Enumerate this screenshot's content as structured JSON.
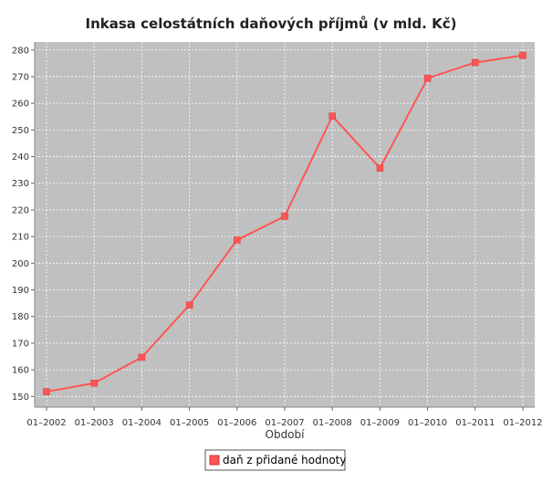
{
  "chart_data": {
    "type": "line",
    "title": "Inkasa celostátních daňových příjmů (v mld. Kč)",
    "xlabel": "Období",
    "ylabel": "",
    "categories": [
      "01–2002",
      "01–2003",
      "01–2004",
      "01–2005",
      "01–2006",
      "01–2007",
      "01–2008",
      "01–2009",
      "01–2010",
      "01–2011",
      "01–2012"
    ],
    "yticks": [
      150,
      160,
      170,
      180,
      190,
      200,
      210,
      220,
      230,
      240,
      250,
      260,
      270,
      280
    ],
    "ylim": [
      146,
      283
    ],
    "grid": true,
    "legend_position": "bottom",
    "series": [
      {
        "name": "daň z přidané hodnoty",
        "color": "#ff5555",
        "values": [
          151.8,
          155.0,
          164.7,
          184.3,
          208.7,
          217.6,
          255.2,
          235.7,
          269.4,
          275.3,
          278.0
        ]
      }
    ]
  },
  "colors": {
    "plot_bg": "#c0c0c0",
    "grid": "#ffffff",
    "series": "#ff5555"
  }
}
